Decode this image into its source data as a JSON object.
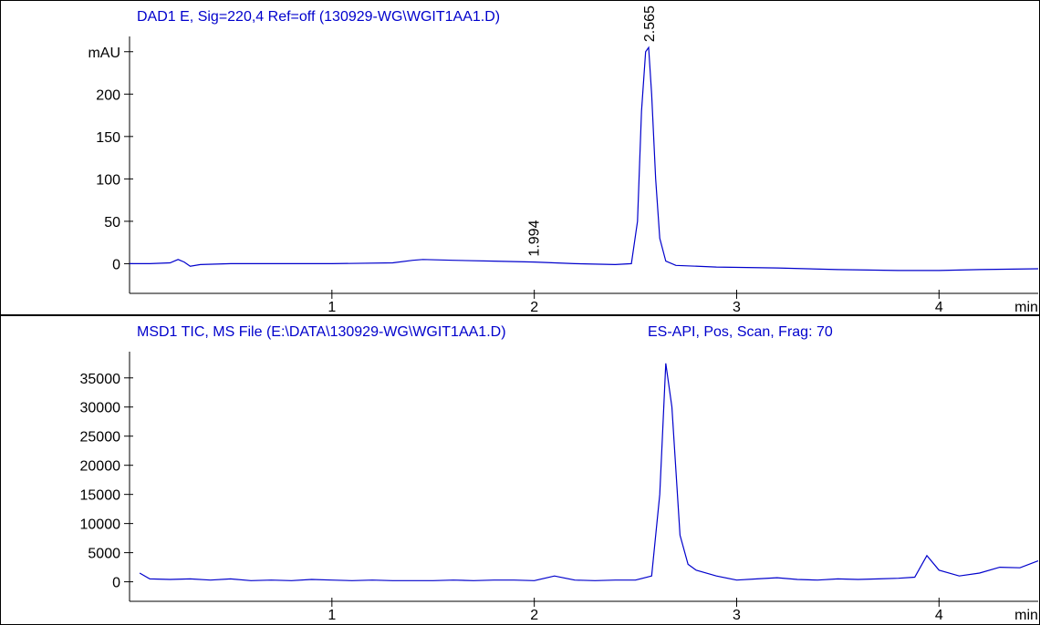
{
  "chart_data": [
    {
      "type": "line",
      "title": "DAD1 E, Sig=220,4 Ref=off (130929-WG\\WGIT1AA1.D)",
      "xlabel": "min",
      "x": [
        0,
        0.1,
        0.2,
        0.24,
        0.27,
        0.3,
        0.35,
        0.5,
        1.0,
        1.3,
        1.4,
        1.45,
        1.6,
        1.8,
        2.0,
        2.2,
        2.4,
        2.48,
        2.51,
        2.53,
        2.55,
        2.565,
        2.58,
        2.6,
        2.62,
        2.65,
        2.7,
        2.9,
        3.2,
        3.5,
        3.8,
        4.0,
        4.2,
        4.49
      ],
      "series": [
        {
          "color": "#0000cc",
          "values": [
            0,
            0,
            1,
            5,
            2,
            -3,
            -1,
            0,
            0,
            1,
            4,
            5,
            4,
            3,
            2,
            0,
            -1,
            0,
            50,
            180,
            250,
            255,
            200,
            100,
            30,
            3,
            -2,
            -4,
            -5,
            -7,
            -8,
            -8,
            -7,
            -6
          ]
        }
      ],
      "peak_labels": [
        1.994,
        2.565
      ],
      "xlim": [
        0,
        4.49
      ],
      "xticks": [
        1,
        2,
        3,
        4
      ],
      "ylim": [
        -35,
        268
      ],
      "yticks": [
        0,
        50,
        100,
        150,
        200,
        {
          "value": 250,
          "label": "mAU"
        }
      ]
    },
    {
      "type": "line",
      "title": "MSD1 TIC, MS File (E:\\DATA\\130929-WG\\WGIT1AA1.D)",
      "subtitle": "ES-API, Pos, Scan, Frag: 70",
      "xlabel": "min",
      "x": [
        0.05,
        0.1,
        0.2,
        0.3,
        0.4,
        0.5,
        0.6,
        0.7,
        0.8,
        0.9,
        1.0,
        1.1,
        1.2,
        1.3,
        1.4,
        1.5,
        1.6,
        1.7,
        1.8,
        1.9,
        2.0,
        2.1,
        2.2,
        2.3,
        2.4,
        2.5,
        2.58,
        2.62,
        2.65,
        2.68,
        2.72,
        2.76,
        2.8,
        2.9,
        3.0,
        3.1,
        3.2,
        3.3,
        3.4,
        3.5,
        3.6,
        3.7,
        3.8,
        3.88,
        3.94,
        4.0,
        4.1,
        4.2,
        4.3,
        4.4,
        4.49
      ],
      "series": [
        {
          "color": "#0000cc",
          "values": [
            1500,
            500,
            400,
            500,
            300,
            500,
            200,
            300,
            200,
            400,
            300,
            200,
            300,
            200,
            200,
            200,
            300,
            200,
            300,
            300,
            200,
            1000,
            300,
            200,
            300,
            300,
            1000,
            15000,
            37500,
            30000,
            8000,
            3000,
            2000,
            1000,
            300,
            500,
            700,
            400,
            300,
            500,
            400,
            500,
            600,
            800,
            4500,
            2000,
            1000,
            1500,
            2500,
            2400,
            3600
          ]
        }
      ],
      "xlim": [
        0,
        4.49
      ],
      "xticks": [
        1,
        2,
        3,
        4
      ],
      "ylim": [
        -3350,
        39500
      ],
      "yticks": [
        0,
        5000,
        10000,
        15000,
        20000,
        25000,
        30000,
        35000
      ]
    }
  ]
}
